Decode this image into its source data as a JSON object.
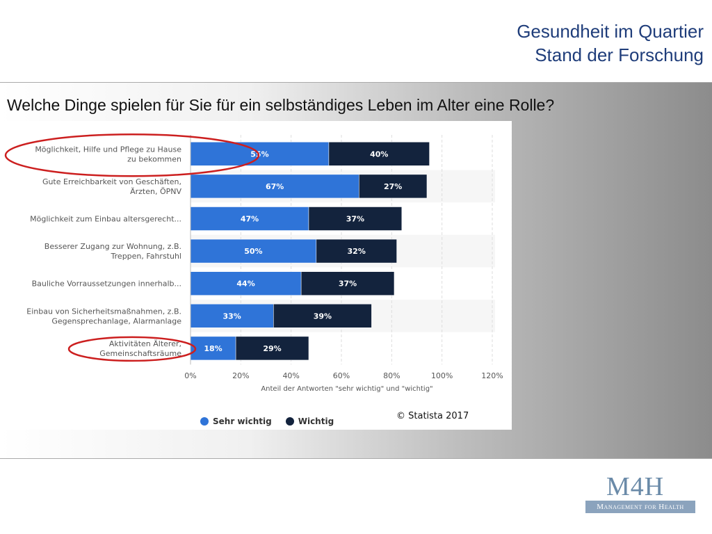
{
  "header": {
    "title_line1": "Gesundheit im Quartier",
    "title_line2": "Stand der Forschung"
  },
  "question": "Welche Dinge spielen für Sie für ein selbständiges Leben im Alter eine Rolle?",
  "copyright": "© Statista 2017",
  "logo": {
    "main": "M4H",
    "sub": "Management for Health"
  },
  "colors": {
    "sehr_wichtig": "#2f74d8",
    "wichtig": "#13233d",
    "highlight_ellipse": "#cc1f1f",
    "title": "#1f3d7a"
  },
  "chart_data": {
    "type": "bar",
    "orientation": "horizontal",
    "stacked": true,
    "categories": [
      [
        "Möglichkeit, Hilfe und Pflege zu Hause",
        "zu bekommen"
      ],
      [
        "Gute Erreichbarkeit von Geschäften,",
        "Ärzten, ÖPNV"
      ],
      [
        "Möglichkeit zum Einbau altersgerecht..."
      ],
      [
        "Besserer Zugang zur Wohnung, z.B.",
        "Treppen, Fahrstuhl"
      ],
      [
        "Bauliche Vorraussetzungen innerhalb..."
      ],
      [
        "Einbau von Sicherheitsmaßnahmen, z.B.",
        "Gegensprechanlage, Alarmanlage"
      ],
      [
        "Aktivitäten Älterer,",
        "Gemeinschaftsräume"
      ]
    ],
    "series": [
      {
        "name": "Sehr wichtig",
        "values": [
          55,
          67,
          47,
          50,
          44,
          33,
          18
        ]
      },
      {
        "name": "Wichtig",
        "values": [
          40,
          27,
          37,
          32,
          37,
          39,
          29
        ]
      }
    ],
    "xlim": [
      0,
      120
    ],
    "xticks": [
      0,
      20,
      40,
      60,
      80,
      100,
      120
    ],
    "tick_suffix": "%",
    "xlabel": "Anteil der Antworten \"sehr wichtig\" und \"wichtig\"",
    "grid": true,
    "legend": "bottom-left",
    "highlighted_categories": [
      0,
      6
    ]
  }
}
